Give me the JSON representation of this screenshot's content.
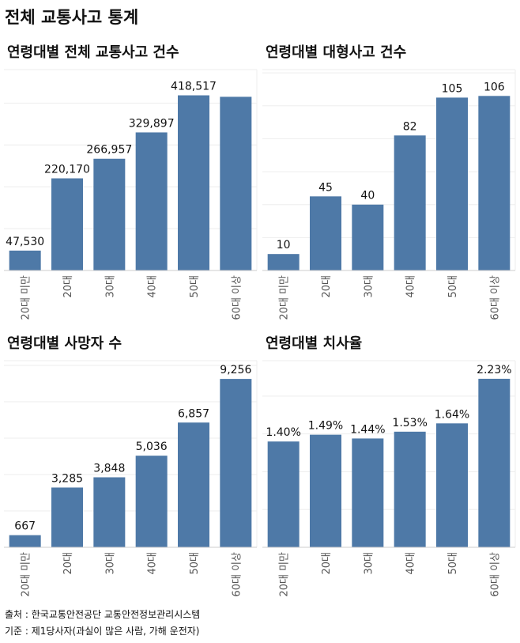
{
  "title": "전체 교통사고 통계",
  "chart_data": [
    {
      "type": "bar",
      "title": "연령대별 전체 교통사고 건수",
      "categories": [
        "20대 미만",
        "20대",
        "30대",
        "40대",
        "50대",
        "60대 이상"
      ],
      "values": [
        47530,
        220170,
        266957,
        329897,
        418517,
        415000
      ],
      "labels": [
        "47,530",
        "220,170",
        "266,957",
        "329,897",
        "418,517",
        ""
      ],
      "ylim": [
        0,
        480000
      ],
      "grid_step": 100000,
      "grid": true,
      "color": "#4e79a7"
    },
    {
      "type": "bar",
      "title": "연령대별 대형사고 건수",
      "categories": [
        "20대 미만",
        "20대",
        "30대",
        "40대",
        "50대",
        "60대 이상"
      ],
      "values": [
        10,
        45,
        40,
        82,
        105,
        106
      ],
      "labels": [
        "10",
        "45",
        "40",
        "82",
        "105",
        "106"
      ],
      "ylim": [
        0,
        122
      ],
      "grid_step": 20,
      "grid": true,
      "color": "#4e79a7"
    },
    {
      "type": "bar",
      "title": "연령대별 사망자 수",
      "categories": [
        "20대 미만",
        "20대",
        "30대",
        "40대",
        "50대",
        "60대 이상"
      ],
      "values": [
        667,
        3285,
        3848,
        5036,
        6857,
        9256
      ],
      "labels": [
        "667",
        "3,285",
        "3,848",
        "5,036",
        "6,857",
        "9,256"
      ],
      "ylim": [
        0,
        10260
      ],
      "grid_step": 2000,
      "grid": true,
      "color": "#4e79a7"
    },
    {
      "type": "bar",
      "title": "연령대별 치사율",
      "categories": [
        "20대 미만",
        "20대",
        "30대",
        "40대",
        "50대",
        "60대 이상"
      ],
      "values": [
        1.4,
        1.49,
        1.44,
        1.53,
        1.64,
        2.23
      ],
      "labels": [
        "1.40%",
        "1.49%",
        "1.44%",
        "1.53%",
        "1.64%",
        "2.23%"
      ],
      "ylim": [
        0,
        2.47
      ],
      "grid_step": 0.5,
      "grid": true,
      "color": "#4e79a7"
    }
  ],
  "footer": {
    "source": "출처 : 한국교통안전공단 교통안전정보관리시스템",
    "basis": "기준 : 제1당사자(과실이 많은 사람, 가해 운전자)"
  }
}
